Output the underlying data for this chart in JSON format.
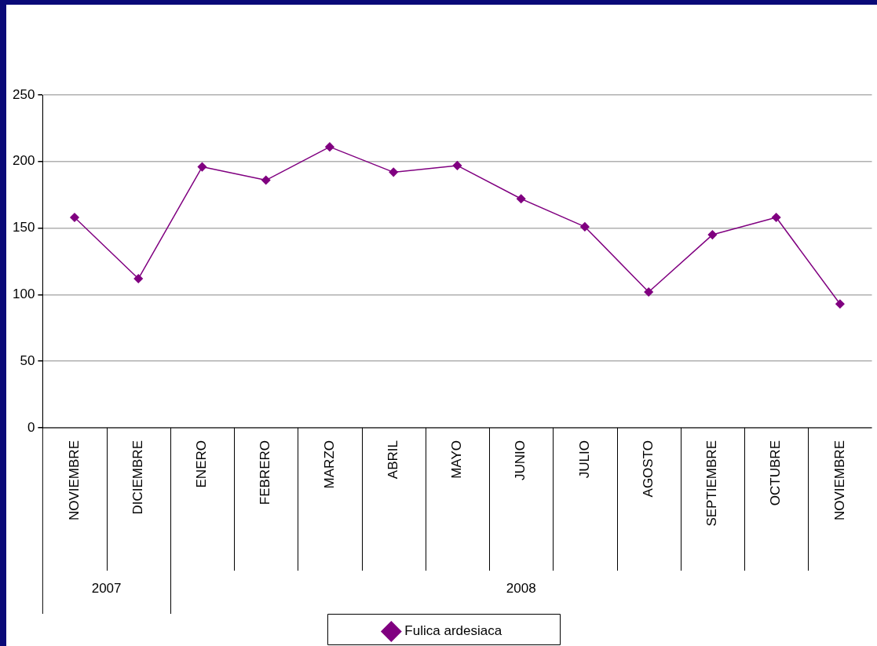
{
  "chart_data": {
    "type": "line",
    "categories": [
      "NOVIEMBRE",
      "DICIEMBRE",
      "ENERO",
      "FEBRERO",
      "MARZO",
      "ABRIL",
      "MAYO",
      "JUNIO",
      "JULIO",
      "AGOSTO",
      "SEPTIEMBRE",
      "OCTUBRE",
      "NOVIEMBRE"
    ],
    "series": [
      {
        "name": "Fulica ardesiaca",
        "color": "#800080",
        "values": [
          158,
          112,
          196,
          186,
          211,
          192,
          197,
          172,
          151,
          102,
          145,
          158,
          93
        ]
      }
    ],
    "annotations": [
      "2007",
      "2008"
    ],
    "ylim": [
      0,
      250
    ],
    "yticks": [
      0,
      50,
      100,
      150,
      200,
      250
    ],
    "grid": "y",
    "legend": "bottom",
    "marker": "diamond",
    "line_style": "solid"
  }
}
